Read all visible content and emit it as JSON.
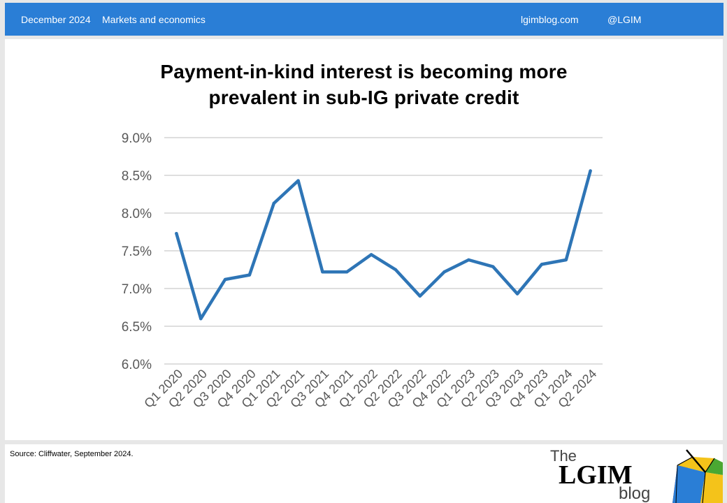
{
  "header": {
    "date": "December 2024",
    "category": "Markets and economics",
    "site": "lgimblog.com",
    "handle": "@LGIM"
  },
  "chart_data": {
    "type": "line",
    "title_lines": [
      "Payment-in-kind interest is becoming more",
      "prevalent in sub-IG private credit"
    ],
    "categories": [
      "Q1 2020",
      "Q2 2020",
      "Q3 2020",
      "Q4 2020",
      "Q1 2021",
      "Q2 2021",
      "Q3 2021",
      "Q4 2021",
      "Q1 2022",
      "Q2 2022",
      "Q3 2022",
      "Q4 2022",
      "Q1 2023",
      "Q2 2023",
      "Q3 2023",
      "Q4 2023",
      "Q1 2024",
      "Q2 2024"
    ],
    "series": [
      {
        "values": [
          7.73,
          6.6,
          7.12,
          7.18,
          8.13,
          8.43,
          7.22,
          7.22,
          7.45,
          7.25,
          6.9,
          7.22,
          7.38,
          7.29,
          6.93,
          7.32,
          7.38,
          8.56
        ]
      }
    ],
    "y_ticks": [
      "6.0%",
      "6.5%",
      "7.0%",
      "7.5%",
      "8.0%",
      "8.5%",
      "9.0%"
    ],
    "ylim": [
      6.0,
      9.0
    ],
    "grid": true,
    "line_color": "#2e75b6"
  },
  "footer": {
    "source": "Source: Cliffwater, September 2024.",
    "logo": {
      "the": "The",
      "name": "LGIM",
      "blog": "blog"
    }
  }
}
